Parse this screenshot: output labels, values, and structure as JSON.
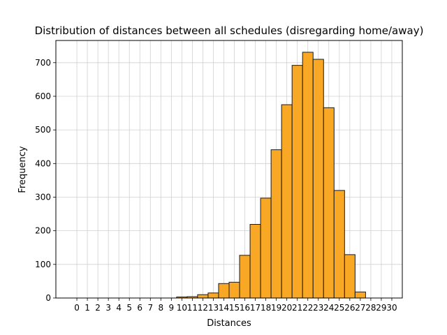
{
  "chart_data": {
    "type": "bar",
    "title": "Distribution of distances between all schedules (disregarding home/away)",
    "xlabel": "Distances",
    "ylabel": "Frequency",
    "xlim": [
      -2.0,
      31.0
    ],
    "ylim": [
      0,
      766
    ],
    "x_ticks": [
      0,
      1,
      2,
      3,
      4,
      5,
      6,
      7,
      8,
      9,
      10,
      11,
      12,
      13,
      14,
      15,
      16,
      17,
      18,
      19,
      20,
      21,
      22,
      23,
      24,
      25,
      26,
      27,
      28,
      29,
      30
    ],
    "y_ticks": [
      0,
      100,
      200,
      300,
      400,
      500,
      600,
      700
    ],
    "grid": true,
    "categories": [
      0,
      1,
      2,
      3,
      4,
      5,
      6,
      7,
      8,
      9,
      10,
      11,
      12,
      13,
      14,
      15,
      16,
      17,
      18,
      19,
      20,
      21,
      22,
      23,
      24,
      25,
      26,
      27,
      28,
      29,
      30
    ],
    "values": [
      0,
      0,
      0,
      0,
      0,
      0,
      0,
      0,
      0,
      0,
      3,
      4,
      10,
      15,
      43,
      47,
      127,
      219,
      297,
      441,
      575,
      692,
      731,
      710,
      566,
      320,
      129,
      18,
      0,
      0,
      0
    ],
    "bar_color": "#f9a825",
    "edge_color": "#1a1a1a"
  }
}
